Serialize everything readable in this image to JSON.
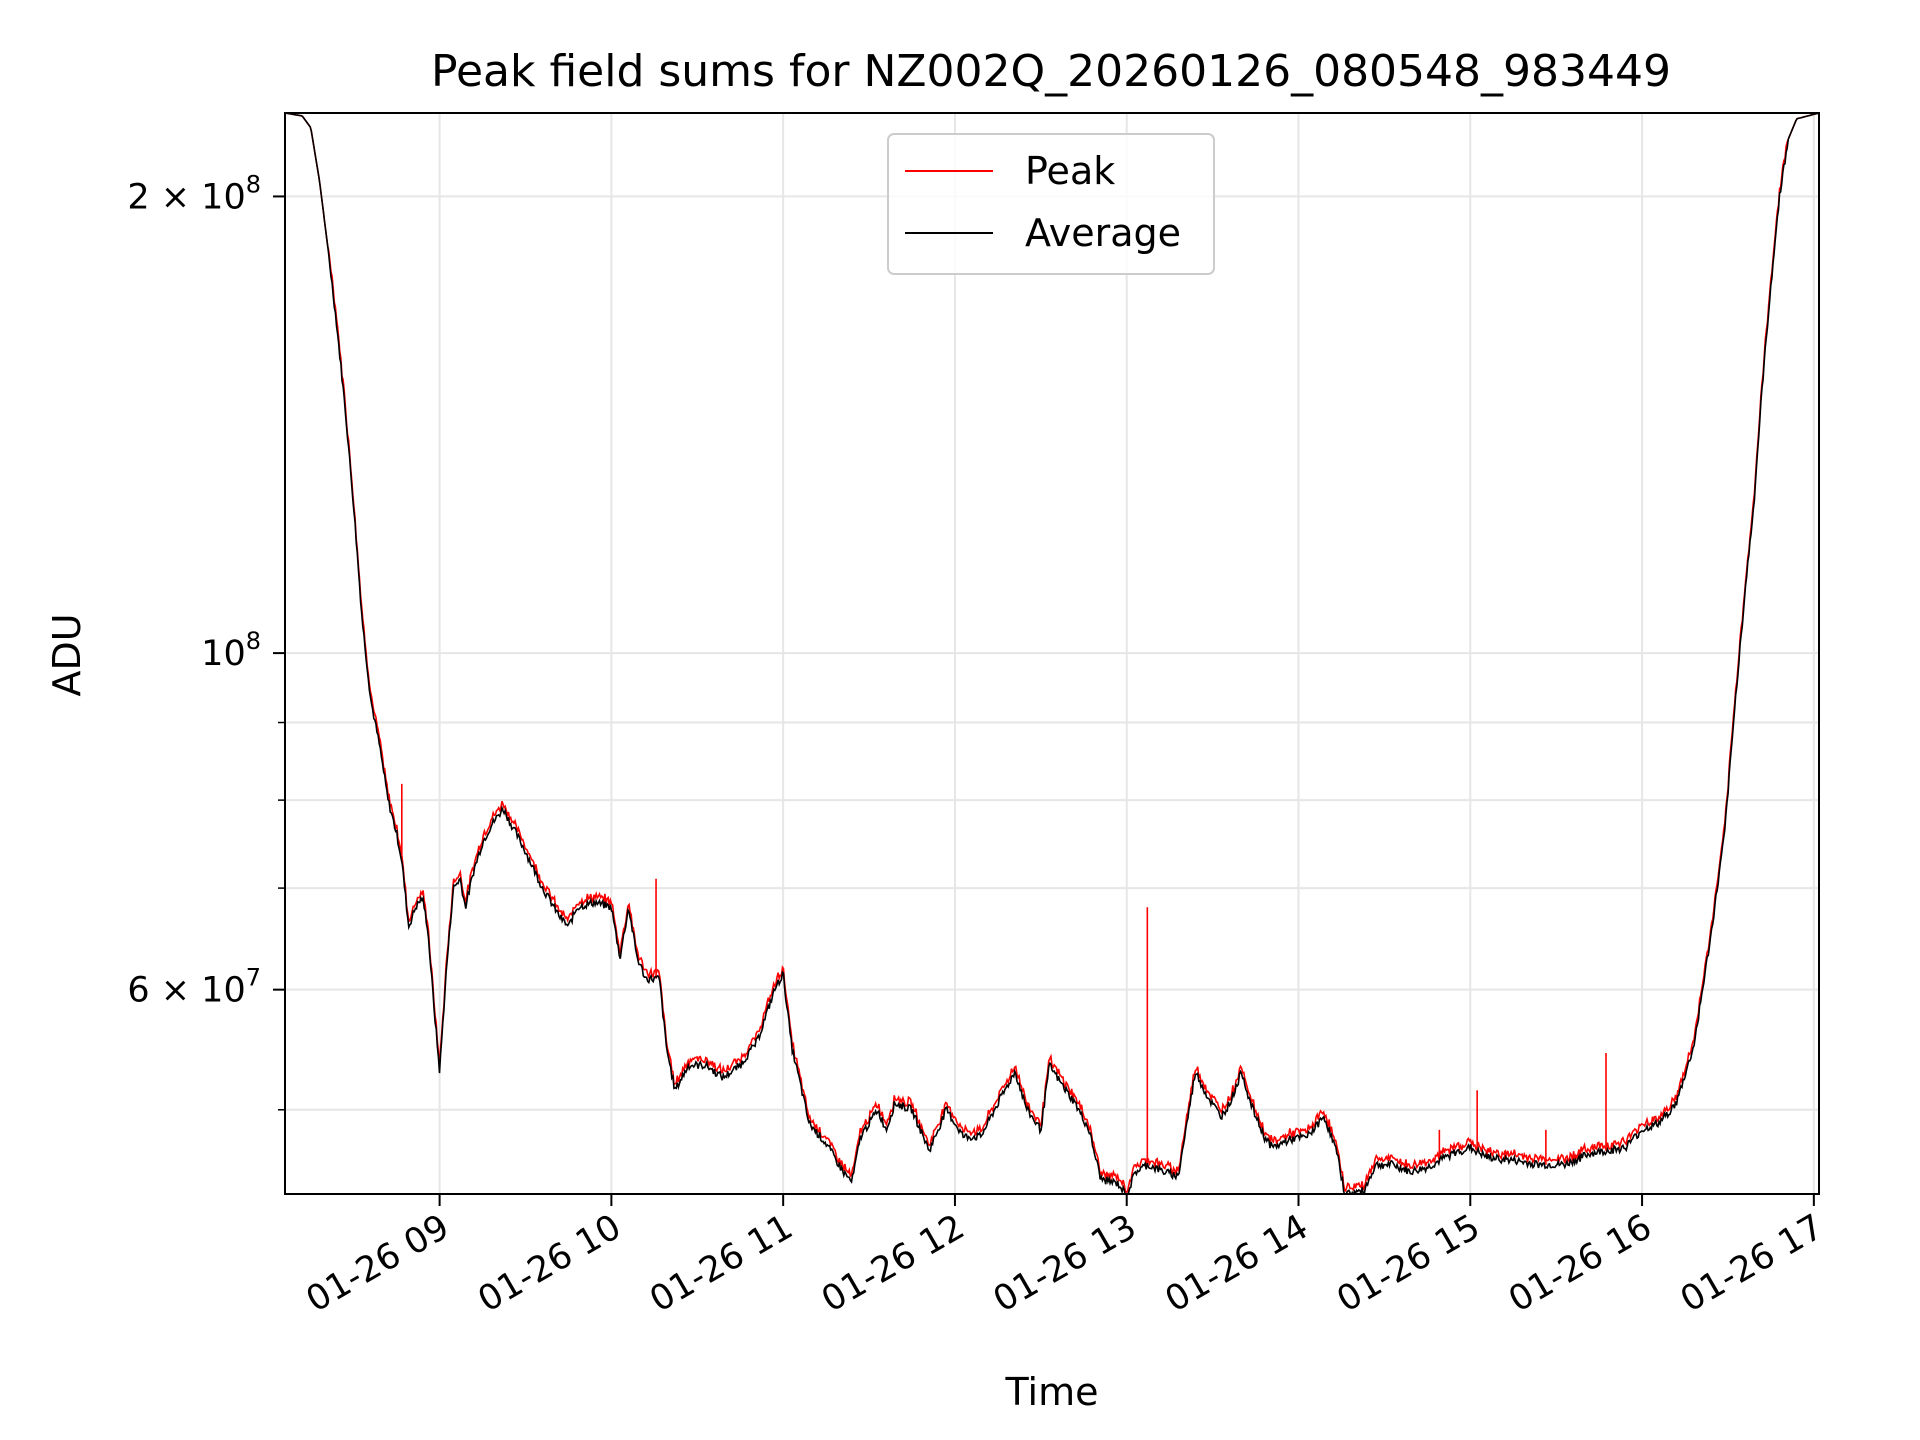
{
  "chart_data": {
    "type": "line",
    "title": "Peak field sums for NZ002Q_20260126_080548_983449",
    "xlabel": "Time",
    "ylabel": "ADU",
    "yscale": "log",
    "xlim_hours": [
      8.1,
      17.03
    ],
    "ylim": [
      44000000,
      227000000
    ],
    "grid": true,
    "legend_position": "upper center",
    "x_ticks": [
      {
        "hour": 9,
        "label": "01-26 09"
      },
      {
        "hour": 10,
        "label": "01-26 10"
      },
      {
        "hour": 11,
        "label": "01-26 11"
      },
      {
        "hour": 12,
        "label": "01-26 12"
      },
      {
        "hour": 13,
        "label": "01-26 13"
      },
      {
        "hour": 14,
        "label": "01-26 14"
      },
      {
        "hour": 15,
        "label": "01-26 15"
      },
      {
        "hour": 16,
        "label": "01-26 16"
      },
      {
        "hour": 17,
        "label": "01-26 17"
      }
    ],
    "y_major_ticks": [
      {
        "value": 60000000,
        "label_mantissa": "6 × 10",
        "label_exp": "7"
      },
      {
        "value": 100000000,
        "label_mantissa": "10",
        "label_exp": "8"
      },
      {
        "value": 200000000,
        "label_mantissa": "2 × 10",
        "label_exp": "8"
      }
    ],
    "y_minor_ticks": [
      50000000,
      70000000,
      80000000,
      90000000
    ],
    "series": [
      {
        "name": "Peak",
        "color": "#ff0000",
        "spikes": [
          {
            "hour": 8.78,
            "value": 82000000
          },
          {
            "hour": 10.26,
            "value": 71000000
          },
          {
            "hour": 13.12,
            "value": 68000000
          },
          {
            "hour": 14.82,
            "value": 48500000
          },
          {
            "hour": 15.04,
            "value": 51500000
          },
          {
            "hour": 15.2,
            "value": 47000000
          },
          {
            "hour": 15.44,
            "value": 48500000
          },
          {
            "hour": 15.79,
            "value": 54500000
          }
        ]
      },
      {
        "name": "Average",
        "color": "#000000",
        "points": [
          [
            8.1,
            227000000
          ],
          [
            8.2,
            226000000
          ],
          [
            8.25,
            222000000
          ],
          [
            8.3,
            205000000
          ],
          [
            8.35,
            185000000
          ],
          [
            8.4,
            165000000
          ],
          [
            8.45,
            145000000
          ],
          [
            8.5,
            125000000
          ],
          [
            8.55,
            105000000
          ],
          [
            8.6,
            93000000
          ],
          [
            8.65,
            87000000
          ],
          [
            8.7,
            80000000
          ],
          [
            8.75,
            76000000
          ],
          [
            8.78,
            73000000
          ],
          [
            8.82,
            66000000
          ],
          [
            8.86,
            68000000
          ],
          [
            8.9,
            69000000
          ],
          [
            8.93,
            66000000
          ],
          [
            8.97,
            58000000
          ],
          [
            9.0,
            53000000
          ],
          [
            9.04,
            62000000
          ],
          [
            9.08,
            70000000
          ],
          [
            9.12,
            71000000
          ],
          [
            9.15,
            68000000
          ],
          [
            9.2,
            72000000
          ],
          [
            9.25,
            75000000
          ],
          [
            9.3,
            77000000
          ],
          [
            9.37,
            79000000
          ],
          [
            9.42,
            77000000
          ],
          [
            9.5,
            74000000
          ],
          [
            9.6,
            70000000
          ],
          [
            9.7,
            67000000
          ],
          [
            9.75,
            66000000
          ],
          [
            9.8,
            68000000
          ],
          [
            9.9,
            68500000
          ],
          [
            10.0,
            68000000
          ],
          [
            10.05,
            63000000
          ],
          [
            10.1,
            68000000
          ],
          [
            10.15,
            63000000
          ],
          [
            10.2,
            61000000
          ],
          [
            10.28,
            61000000
          ],
          [
            10.32,
            55000000
          ],
          [
            10.37,
            51500000
          ],
          [
            10.45,
            53500000
          ],
          [
            10.55,
            53500000
          ],
          [
            10.65,
            52500000
          ],
          [
            10.75,
            53500000
          ],
          [
            10.85,
            55500000
          ],
          [
            10.95,
            60000000
          ],
          [
            11.0,
            61500000
          ],
          [
            11.05,
            55000000
          ],
          [
            11.1,
            52000000
          ],
          [
            11.15,
            49000000
          ],
          [
            11.25,
            47500000
          ],
          [
            11.35,
            45500000
          ],
          [
            11.4,
            44800000
          ],
          [
            11.45,
            48000000
          ],
          [
            11.55,
            50000000
          ],
          [
            11.6,
            48500000
          ],
          [
            11.65,
            50500000
          ],
          [
            11.75,
            50000000
          ],
          [
            11.85,
            47000000
          ],
          [
            11.95,
            50000000
          ],
          [
            12.05,
            48000000
          ],
          [
            12.15,
            48000000
          ],
          [
            12.25,
            50500000
          ],
          [
            12.35,
            53000000
          ],
          [
            12.42,
            50000000
          ],
          [
            12.5,
            48500000
          ],
          [
            12.55,
            53500000
          ],
          [
            12.62,
            52000000
          ],
          [
            12.7,
            50500000
          ],
          [
            12.78,
            48500000
          ],
          [
            12.85,
            45000000
          ],
          [
            12.95,
            44700000
          ],
          [
            13.0,
            43900000
          ],
          [
            13.05,
            45500000
          ],
          [
            13.12,
            46000000
          ],
          [
            13.22,
            45500000
          ],
          [
            13.3,
            45200000
          ],
          [
            13.35,
            49000000
          ],
          [
            13.4,
            53000000
          ],
          [
            13.47,
            51000000
          ],
          [
            13.55,
            49500000
          ],
          [
            13.6,
            50500000
          ],
          [
            13.67,
            53000000
          ],
          [
            13.72,
            50500000
          ],
          [
            13.8,
            48000000
          ],
          [
            13.85,
            47200000
          ],
          [
            13.95,
            47800000
          ],
          [
            14.05,
            48000000
          ],
          [
            14.15,
            49500000
          ],
          [
            14.22,
            47000000
          ],
          [
            14.27,
            44000000
          ],
          [
            14.32,
            44100000
          ],
          [
            14.38,
            44200000
          ],
          [
            14.45,
            46000000
          ],
          [
            14.55,
            46000000
          ],
          [
            14.65,
            45500000
          ],
          [
            14.75,
            45800000
          ],
          [
            14.9,
            46800000
          ],
          [
            15.0,
            47200000
          ],
          [
            15.1,
            46500000
          ],
          [
            15.25,
            46300000
          ],
          [
            15.4,
            46000000
          ],
          [
            15.55,
            46000000
          ],
          [
            15.7,
            46800000
          ],
          [
            15.8,
            47000000
          ],
          [
            15.9,
            47200000
          ],
          [
            16.0,
            48500000
          ],
          [
            16.1,
            49000000
          ],
          [
            16.2,
            50500000
          ],
          [
            16.3,
            55000000
          ],
          [
            16.4,
            65000000
          ],
          [
            16.48,
            76000000
          ],
          [
            16.55,
            95000000
          ],
          [
            16.6,
            110000000
          ],
          [
            16.65,
            125000000
          ],
          [
            16.7,
            150000000
          ],
          [
            16.75,
            175000000
          ],
          [
            16.8,
            200000000
          ],
          [
            16.85,
            218000000
          ],
          [
            16.9,
            225000000
          ],
          [
            17.03,
            227000000
          ]
        ]
      }
    ]
  }
}
